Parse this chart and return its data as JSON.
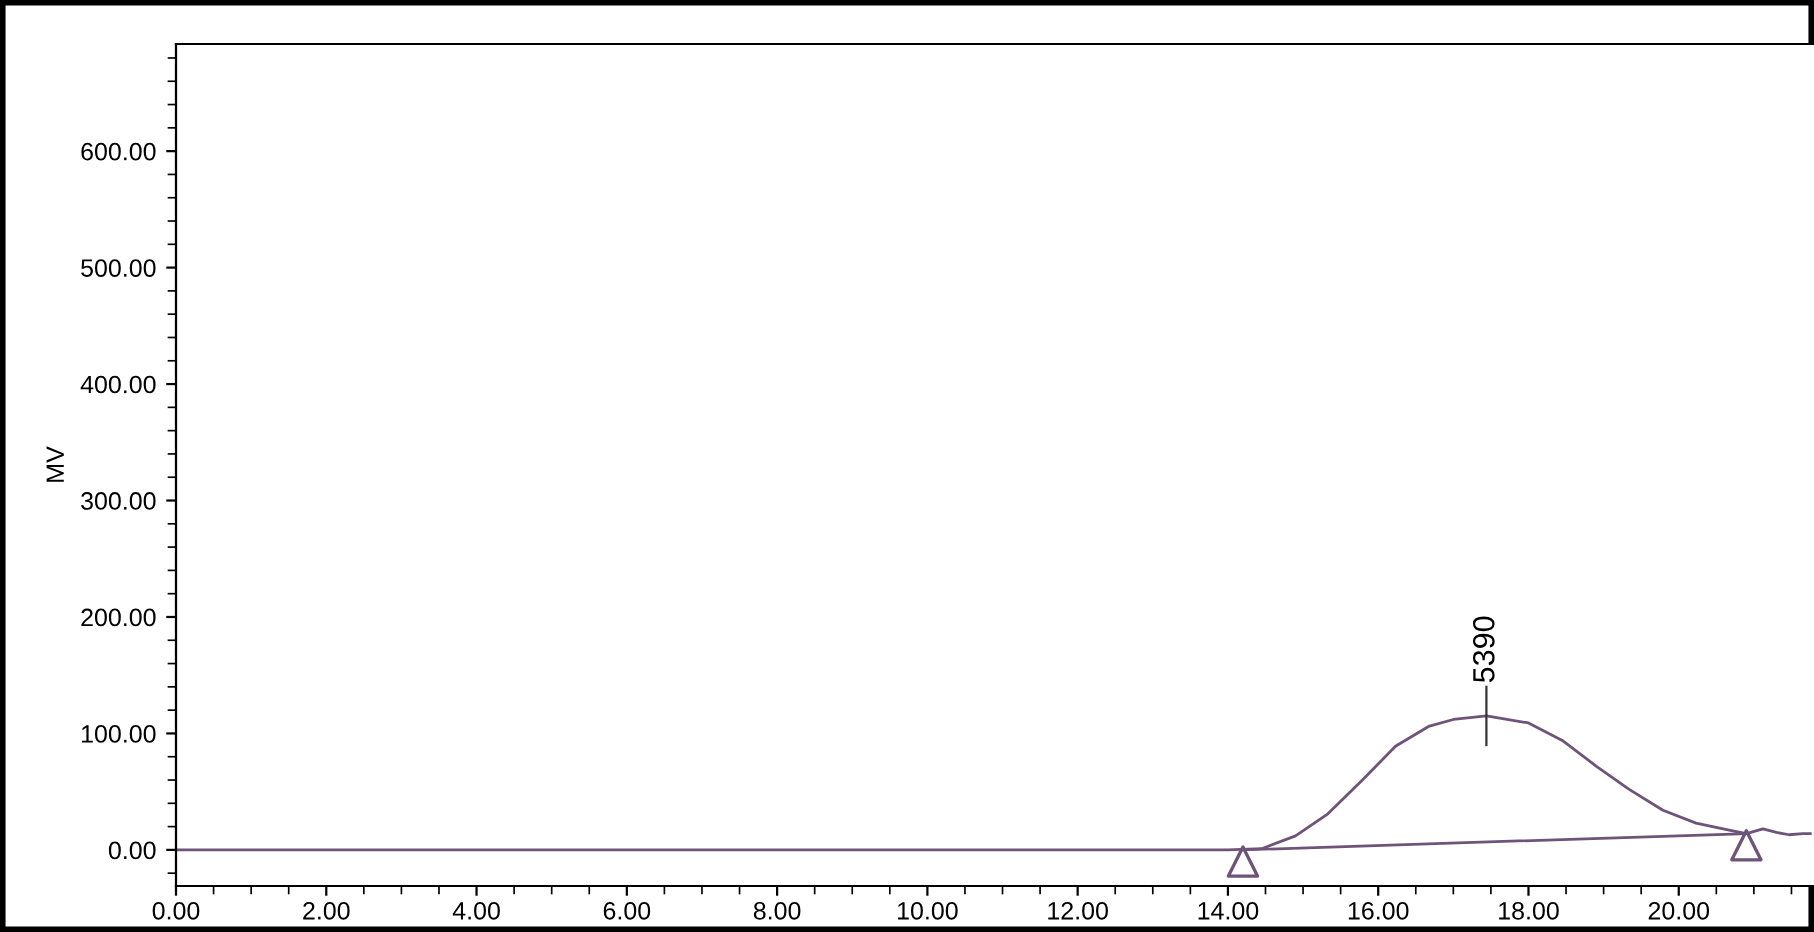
{
  "chart_data": {
    "type": "line",
    "ylabel": "MV",
    "series": [
      {
        "color": "#6e5478",
        "x": [
          0,
          5,
          10,
          14.0,
          14.45,
          14.9,
          15.33,
          15.79,
          16.23,
          16.67,
          17.0,
          17.44,
          18.0,
          18.45,
          18.9,
          19.34,
          19.79,
          20.23,
          20.67,
          20.9,
          21.12,
          21.3,
          21.47,
          21.65,
          21.75
        ],
        "values": [
          0,
          0,
          0,
          0,
          1,
          12,
          31,
          60,
          89,
          106,
          112,
          115,
          109,
          94,
          72,
          52,
          34,
          23,
          17,
          14,
          18,
          15,
          13,
          14,
          14
        ]
      },
      {
        "type": "line",
        "color": "#6e5478",
        "x": [
          14.2,
          20.9
        ],
        "values": [
          0,
          14
        ]
      },
      {
        "type": "scatter",
        "marker": "triangle",
        "color": "#6e5478",
        "x": [
          14.2,
          20.9
        ],
        "values": [
          -10,
          4
        ]
      }
    ],
    "annotations": [
      {
        "text": "5390",
        "x": 17.44,
        "y": 115
      }
    ],
    "xlim": [
      0,
      21.8
    ],
    "xticks": [
      {
        "value": 0,
        "label": "0.00"
      },
      {
        "value": 2,
        "label": "2.00"
      },
      {
        "value": 4,
        "label": "4.00"
      },
      {
        "value": 6,
        "label": "6.00"
      },
      {
        "value": 8,
        "label": "8.00"
      },
      {
        "value": 10,
        "label": "10.00"
      },
      {
        "value": 12,
        "label": "12.00"
      },
      {
        "value": 14,
        "label": "14.00"
      },
      {
        "value": 16,
        "label": "16.00"
      },
      {
        "value": 18,
        "label": "18.00"
      },
      {
        "value": 20,
        "label": "20.00"
      }
    ],
    "ylim": [
      -31,
      692
    ],
    "yticks": [
      {
        "value": 0,
        "label": "0.00"
      },
      {
        "value": 100,
        "label": "100.00"
      },
      {
        "value": 200,
        "label": "200.00"
      },
      {
        "value": 300,
        "label": "300.00"
      },
      {
        "value": 400,
        "label": "400.00"
      },
      {
        "value": 500,
        "label": "500.00"
      },
      {
        "value": 600,
        "label": "600.00"
      }
    ],
    "grid": false,
    "legend": false
  }
}
